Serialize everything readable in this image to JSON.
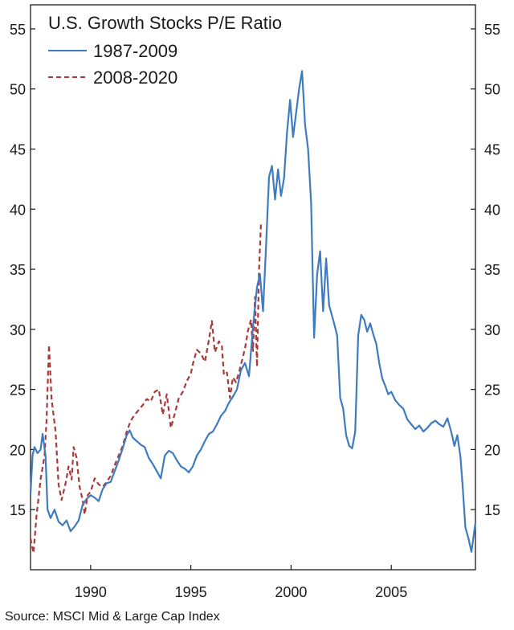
{
  "chart_data": {
    "type": "line",
    "title": "U.S. Growth Stocks P/E Ratio",
    "source": "Source: MSCI Mid & Large Cap Index",
    "xlim": [
      1987.0,
      2009.2
    ],
    "ylim": [
      10,
      57
    ],
    "x_ticks": [
      "1990",
      "1995",
      "2000",
      "2005"
    ],
    "x_tick_values": [
      1990,
      1995,
      2000,
      2005
    ],
    "y_ticks": [
      "15",
      "20",
      "25",
      "30",
      "35",
      "40",
      "45",
      "50",
      "55"
    ],
    "y_tick_values": [
      15,
      20,
      25,
      30,
      35,
      40,
      45,
      50,
      55
    ],
    "legend_position": "top-left",
    "series": [
      {
        "name": "1987-2009",
        "color": "#3f7bbf",
        "style": "solid",
        "points": [
          [
            1987.0,
            16.3
          ],
          [
            1987.1,
            19.5
          ],
          [
            1987.2,
            20.2
          ],
          [
            1987.35,
            19.7
          ],
          [
            1987.5,
            20.0
          ],
          [
            1987.6,
            21.3
          ],
          [
            1987.75,
            19.5
          ],
          [
            1987.85,
            15.0
          ],
          [
            1988.0,
            14.3
          ],
          [
            1988.2,
            15.0
          ],
          [
            1988.4,
            14.0
          ],
          [
            1988.6,
            13.7
          ],
          [
            1988.8,
            14.1
          ],
          [
            1989.0,
            13.2
          ],
          [
            1989.2,
            13.6
          ],
          [
            1989.4,
            14.1
          ],
          [
            1989.6,
            15.4
          ],
          [
            1989.8,
            15.9
          ],
          [
            1990.0,
            16.2
          ],
          [
            1990.2,
            16.0
          ],
          [
            1990.4,
            15.7
          ],
          [
            1990.6,
            16.7
          ],
          [
            1990.8,
            17.2
          ],
          [
            1991.0,
            17.3
          ],
          [
            1991.2,
            18.2
          ],
          [
            1991.4,
            19.1
          ],
          [
            1991.6,
            20.1
          ],
          [
            1991.8,
            21.2
          ],
          [
            1991.95,
            21.6
          ],
          [
            1992.1,
            21.0
          ],
          [
            1992.3,
            20.7
          ],
          [
            1992.5,
            20.4
          ],
          [
            1992.7,
            20.2
          ],
          [
            1992.9,
            19.3
          ],
          [
            1993.1,
            18.8
          ],
          [
            1993.3,
            18.2
          ],
          [
            1993.5,
            17.6
          ],
          [
            1993.7,
            19.5
          ],
          [
            1993.9,
            19.9
          ],
          [
            1994.1,
            19.7
          ],
          [
            1994.3,
            19.1
          ],
          [
            1994.5,
            18.6
          ],
          [
            1994.7,
            18.4
          ],
          [
            1994.9,
            18.1
          ],
          [
            1995.1,
            18.6
          ],
          [
            1995.3,
            19.5
          ],
          [
            1995.5,
            20.0
          ],
          [
            1995.7,
            20.7
          ],
          [
            1995.9,
            21.3
          ],
          [
            1996.1,
            21.5
          ],
          [
            1996.3,
            22.1
          ],
          [
            1996.5,
            22.8
          ],
          [
            1996.7,
            23.2
          ],
          [
            1996.9,
            23.9
          ],
          [
            1997.1,
            24.4
          ],
          [
            1997.3,
            25.0
          ],
          [
            1997.5,
            26.6
          ],
          [
            1997.7,
            27.2
          ],
          [
            1997.9,
            26.1
          ],
          [
            1998.1,
            30.2
          ],
          [
            1998.3,
            33.5
          ],
          [
            1998.45,
            34.6
          ],
          [
            1998.6,
            31.5
          ],
          [
            1998.75,
            36.8
          ],
          [
            1998.9,
            42.7
          ],
          [
            1999.05,
            43.6
          ],
          [
            1999.2,
            40.8
          ],
          [
            1999.35,
            43.3
          ],
          [
            1999.5,
            41.1
          ],
          [
            1999.65,
            42.6
          ],
          [
            1999.8,
            46.4
          ],
          [
            1999.95,
            49.1
          ],
          [
            2000.1,
            46.0
          ],
          [
            2000.25,
            48.0
          ],
          [
            2000.4,
            50.0
          ],
          [
            2000.55,
            51.5
          ],
          [
            2000.7,
            47.0
          ],
          [
            2000.85,
            45.0
          ],
          [
            2001.0,
            40.5
          ],
          [
            2001.15,
            29.3
          ],
          [
            2001.3,
            34.6
          ],
          [
            2001.45,
            36.5
          ],
          [
            2001.6,
            31.5
          ],
          [
            2001.75,
            35.9
          ],
          [
            2001.9,
            32.0
          ],
          [
            2002.1,
            30.8
          ],
          [
            2002.3,
            29.5
          ],
          [
            2002.45,
            24.3
          ],
          [
            2002.6,
            23.4
          ],
          [
            2002.75,
            21.2
          ],
          [
            2002.9,
            20.3
          ],
          [
            2003.05,
            20.1
          ],
          [
            2003.2,
            21.5
          ],
          [
            2003.35,
            29.5
          ],
          [
            2003.5,
            31.2
          ],
          [
            2003.65,
            30.8
          ],
          [
            2003.8,
            29.8
          ],
          [
            2003.95,
            30.5
          ],
          [
            2004.1,
            29.6
          ],
          [
            2004.25,
            28.8
          ],
          [
            2004.4,
            27.2
          ],
          [
            2004.55,
            25.9
          ],
          [
            2004.7,
            25.3
          ],
          [
            2004.85,
            24.6
          ],
          [
            2005.0,
            24.8
          ],
          [
            2005.2,
            24.1
          ],
          [
            2005.4,
            23.7
          ],
          [
            2005.6,
            23.4
          ],
          [
            2005.8,
            22.5
          ],
          [
            2006.0,
            22.1
          ],
          [
            2006.2,
            21.7
          ],
          [
            2006.4,
            22.0
          ],
          [
            2006.6,
            21.5
          ],
          [
            2006.8,
            21.8
          ],
          [
            2007.0,
            22.2
          ],
          [
            2007.2,
            22.4
          ],
          [
            2007.4,
            22.1
          ],
          [
            2007.6,
            21.9
          ],
          [
            2007.8,
            22.6
          ],
          [
            2008.0,
            21.4
          ],
          [
            2008.15,
            20.3
          ],
          [
            2008.3,
            21.2
          ],
          [
            2008.45,
            19.4
          ],
          [
            2008.55,
            17.2
          ],
          [
            2008.7,
            13.5
          ],
          [
            2008.85,
            12.6
          ],
          [
            2009.0,
            11.5
          ],
          [
            2009.1,
            12.7
          ],
          [
            2009.2,
            13.9
          ]
        ]
      },
      {
        "name": "2008-2020",
        "color": "#a83a3a",
        "style": "dashed",
        "points": [
          [
            1987.0,
            12.6
          ],
          [
            1987.15,
            11.4
          ],
          [
            1987.3,
            14.5
          ],
          [
            1987.5,
            17.5
          ],
          [
            1987.7,
            19.5
          ],
          [
            1987.8,
            22.5
          ],
          [
            1987.92,
            28.7
          ],
          [
            1988.05,
            24.2
          ],
          [
            1988.25,
            21.5
          ],
          [
            1988.4,
            17.1
          ],
          [
            1988.55,
            15.8
          ],
          [
            1988.75,
            17.2
          ],
          [
            1988.9,
            18.6
          ],
          [
            1989.05,
            17.5
          ],
          [
            1989.15,
            20.2
          ],
          [
            1989.3,
            19.3
          ],
          [
            1989.45,
            16.9
          ],
          [
            1989.6,
            15.8
          ],
          [
            1989.7,
            14.6
          ],
          [
            1989.85,
            16.2
          ],
          [
            1990.0,
            16.5
          ],
          [
            1990.2,
            17.6
          ],
          [
            1990.4,
            17.1
          ],
          [
            1990.6,
            16.9
          ],
          [
            1990.8,
            17.3
          ],
          [
            1991.0,
            17.8
          ],
          [
            1991.2,
            18.7
          ],
          [
            1991.4,
            19.5
          ],
          [
            1991.6,
            20.3
          ],
          [
            1991.8,
            21.5
          ],
          [
            1992.0,
            22.4
          ],
          [
            1992.2,
            22.9
          ],
          [
            1992.4,
            23.3
          ],
          [
            1992.6,
            23.7
          ],
          [
            1992.8,
            24.2
          ],
          [
            1993.0,
            24.0
          ],
          [
            1993.2,
            24.8
          ],
          [
            1993.4,
            25.0
          ],
          [
            1993.6,
            22.9
          ],
          [
            1993.8,
            24.6
          ],
          [
            1994.0,
            21.8
          ],
          [
            1994.2,
            23.0
          ],
          [
            1994.4,
            24.3
          ],
          [
            1994.6,
            24.8
          ],
          [
            1994.8,
            25.7
          ],
          [
            1995.0,
            26.3
          ],
          [
            1995.1,
            27.1
          ],
          [
            1995.3,
            28.3
          ],
          [
            1995.5,
            28.0
          ],
          [
            1995.7,
            27.3
          ],
          [
            1995.9,
            29.1
          ],
          [
            1996.05,
            30.7
          ],
          [
            1996.2,
            28.1
          ],
          [
            1996.4,
            29.0
          ],
          [
            1996.55,
            28.6
          ],
          [
            1996.65,
            26.2
          ],
          [
            1996.8,
            26.4
          ],
          [
            1996.95,
            24.3
          ],
          [
            1997.1,
            26.0
          ],
          [
            1997.25,
            25.6
          ],
          [
            1997.4,
            26.4
          ],
          [
            1997.55,
            27.4
          ],
          [
            1997.7,
            28.4
          ],
          [
            1997.85,
            29.9
          ],
          [
            1998.0,
            30.8
          ],
          [
            1998.1,
            28.2
          ],
          [
            1998.2,
            32.7
          ],
          [
            1998.3,
            26.9
          ],
          [
            1998.4,
            34.9
          ],
          [
            1998.5,
            38.9
          ]
        ]
      }
    ]
  }
}
